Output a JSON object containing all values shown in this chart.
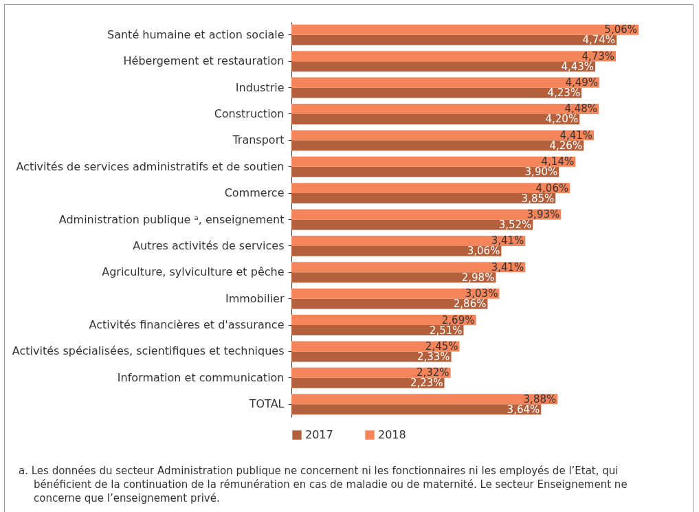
{
  "chart_data": {
    "type": "bar",
    "orientation": "horizontal",
    "categories": [
      "Santé humaine et action sociale",
      "Hébergement et restauration",
      "Industrie",
      "Construction",
      "Transport",
      "Activités de services administratifs et de soutien",
      "Commerce",
      "Administration publique ᵃ, enseignement",
      "Autres activités de services",
      "Agriculture, sylviculture et pêche",
      "Immobilier",
      "Activités financières et d'assurance",
      "Activités spécialisées, scientifiques et techniques",
      "Information et communication",
      "TOTAL"
    ],
    "series": [
      {
        "name": "2017",
        "color": "#b5603d",
        "values": [
          4.74,
          4.43,
          4.23,
          4.2,
          4.26,
          3.9,
          3.85,
          3.52,
          3.06,
          2.98,
          2.86,
          2.51,
          2.33,
          2.23,
          3.64
        ],
        "value_labels": [
          "4,74%",
          "4,43%",
          "4,23%",
          "4,20%",
          "4,26%",
          "3,90%",
          "3,85%",
          "3,52%",
          "3,06%",
          "2,98%",
          "2,86%",
          "2,51%",
          "2,33%",
          "2,23%",
          "3,64%"
        ]
      },
      {
        "name": "2018",
        "color": "#f4845a",
        "values": [
          5.06,
          4.73,
          4.49,
          4.48,
          4.41,
          4.14,
          4.06,
          3.93,
          3.41,
          3.41,
          3.03,
          2.69,
          2.45,
          2.32,
          3.88
        ],
        "value_labels": [
          "5,06%",
          "4,73%",
          "4,49%",
          "4,48%",
          "4,41%",
          "4,14%",
          "4,06%",
          "3,93%",
          "3,41%",
          "3,41%",
          "3,03%",
          "2,69%",
          "2,45%",
          "2,32%",
          "3,88%"
        ]
      }
    ],
    "legend": "bottom",
    "grid": false,
    "annotations": [
      "a. Les données du secteur Administration publique ne concernent ni les fonctionnaires ni les employés de l’Etat, qui bénéficient de la continuation de la rémunération en cas de maladie ou de maternité. Le secteur Enseignement ne concerne que l’enseignement privé."
    ]
  }
}
